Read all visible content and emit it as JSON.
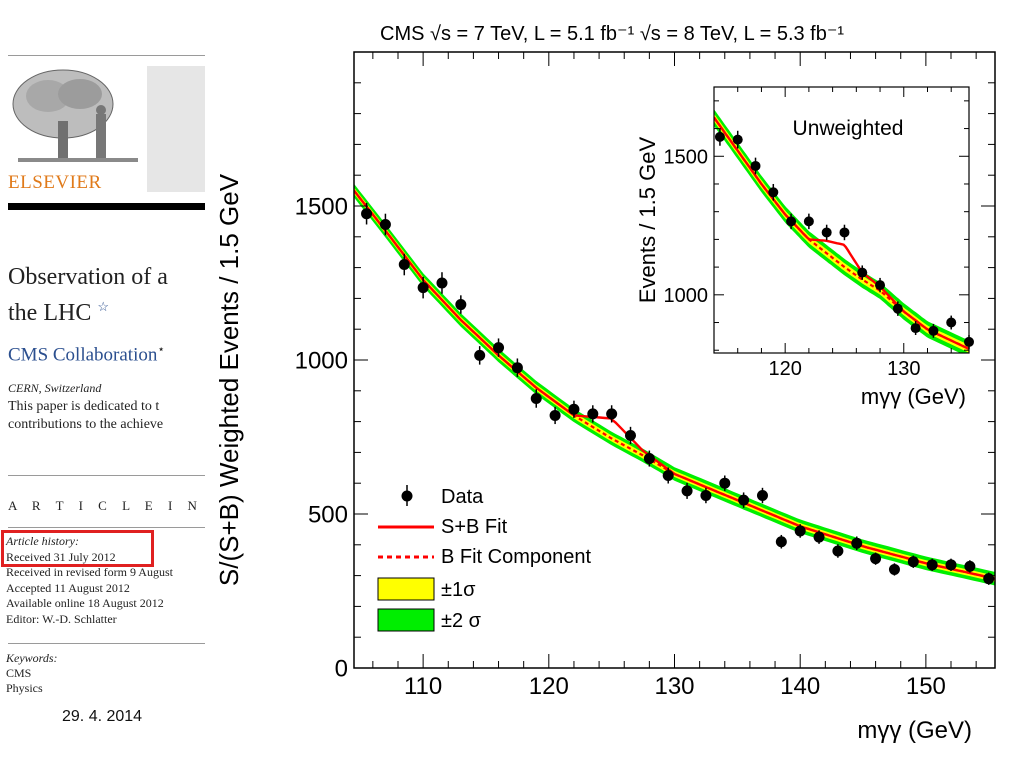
{
  "left_panel": {
    "publisher": "ELSEVIER",
    "title_lines": [
      "Observation of a",
      "the LHC"
    ],
    "title_star": "☆",
    "authors": "CMS Collaboration",
    "authors_star": "⋆",
    "affiliation": "CERN, Switzerland",
    "dedication_lines": [
      "This paper is dedicated to t",
      "contributions to the achieve"
    ],
    "article_info": "A R T I C L E   I N F O",
    "history_label": "Article history:",
    "history_lines": [
      "Received 31 July 2012",
      "Received in revised form 9 August",
      "Accepted 11 August 2012",
      "Available online 18 August 2012",
      "Editor: W.-D. Schlatter"
    ],
    "keywords_label": "Keywords:",
    "keywords": [
      "CMS",
      "Physics"
    ]
  },
  "slide_date": "29. 4. 2014",
  "colors": {
    "highlight_box": "#e02020",
    "fit": "#ff0000",
    "band1": "#ffff00",
    "band2": "#00ee00",
    "publisher": "#e07a1a"
  },
  "chart_data": [
    {
      "type": "scatter",
      "title": "CMS   √s = 7 TeV, L = 5.1 fb⁻¹ √s = 8 TeV, L = 5.3 fb⁻¹",
      "xlabel": "mγγ (GeV)",
      "ylabel": "S/(S+B) Weighted Events / 1.5 GeV",
      "xlim": [
        104.5,
        155.5
      ],
      "ylim": [
        0,
        2000
      ],
      "xticks": [
        110,
        120,
        130,
        140,
        150
      ],
      "yticks": [
        0,
        500,
        1000,
        1500
      ],
      "legend": [
        "Data",
        "S+B Fit",
        "B Fit Component",
        "±1σ",
        "±2 σ"
      ],
      "legend_position": "bottom-left",
      "series": [
        {
          "name": "Data",
          "x": [
            105.5,
            107,
            108.5,
            110,
            111.5,
            113,
            114.5,
            116,
            117.5,
            119,
            120.5,
            122,
            123.5,
            125,
            126.5,
            128,
            129.5,
            131,
            132.5,
            134,
            135.5,
            137,
            138.5,
            140,
            141.5,
            143,
            144.5,
            146,
            147.5,
            149,
            150.5,
            152,
            153.5,
            155
          ],
          "y": [
            1475,
            1440,
            1310,
            1235,
            1250,
            1180,
            1015,
            1040,
            975,
            875,
            820,
            840,
            825,
            825,
            755,
            680,
            625,
            575,
            560,
            600,
            545,
            560,
            410,
            445,
            425,
            380,
            405,
            355,
            320,
            345,
            335,
            335,
            330,
            290
          ],
          "yerr": [
            35,
            35,
            35,
            35,
            35,
            30,
            30,
            30,
            30,
            30,
            28,
            28,
            28,
            28,
            28,
            26,
            26,
            26,
            25,
            25,
            25,
            25,
            22,
            22,
            22,
            22,
            22,
            20,
            20,
            20,
            20,
            20,
            20,
            20
          ]
        },
        {
          "name": "S+B Fit",
          "x": [
            104.5,
            107,
            110,
            113,
            116,
            119,
            122,
            125,
            127.5,
            130,
            135,
            140,
            145,
            150,
            155.5
          ],
          "y": [
            1550,
            1420,
            1260,
            1130,
            1015,
            910,
            820,
            810,
            705,
            630,
            545,
            460,
            395,
            340,
            290
          ]
        },
        {
          "name": "B Fit Component",
          "x": [
            104.5,
            107,
            110,
            113,
            116,
            119,
            122,
            125,
            127.5,
            130,
            135,
            140,
            145,
            150,
            155.5
          ],
          "y": [
            1550,
            1420,
            1260,
            1130,
            1015,
            910,
            820,
            745,
            690,
            630,
            545,
            460,
            395,
            340,
            290
          ]
        }
      ]
    },
    {
      "type": "scatter",
      "title": "Unweighted",
      "xlabel": "mγγ (GeV)",
      "ylabel": "Events / 1.5 GeV",
      "xlim": [
        114,
        135.5
      ],
      "ylim": [
        790,
        1750
      ],
      "xticks": [
        120,
        130
      ],
      "yticks": [
        1000,
        1500
      ],
      "series": [
        {
          "name": "Data",
          "x": [
            114.5,
            116,
            117.5,
            119,
            120.5,
            122,
            123.5,
            125,
            126.5,
            128,
            129.5,
            131,
            132.5,
            134,
            135.5
          ],
          "y": [
            1570,
            1560,
            1465,
            1370,
            1265,
            1265,
            1225,
            1225,
            1080,
            1035,
            950,
            880,
            870,
            900,
            830
          ],
          "yerr": [
            32,
            32,
            30,
            30,
            28,
            28,
            28,
            28,
            26,
            26,
            26,
            25,
            25,
            25,
            25
          ]
        },
        {
          "name": "S+B Fit",
          "x": [
            114,
            116,
            118,
            120,
            122,
            123.5,
            125,
            126.5,
            128,
            130,
            132,
            135.5
          ],
          "y": [
            1640,
            1520,
            1400,
            1290,
            1200,
            1195,
            1180,
            1080,
            1030,
            940,
            875,
            805
          ]
        },
        {
          "name": "B Fit Component",
          "x": [
            114,
            116,
            118,
            120,
            122,
            123.5,
            125,
            126.5,
            128,
            130,
            132,
            135.5
          ],
          "y": [
            1640,
            1520,
            1400,
            1290,
            1200,
            1150,
            1100,
            1055,
            1015,
            940,
            875,
            805
          ]
        }
      ]
    }
  ]
}
